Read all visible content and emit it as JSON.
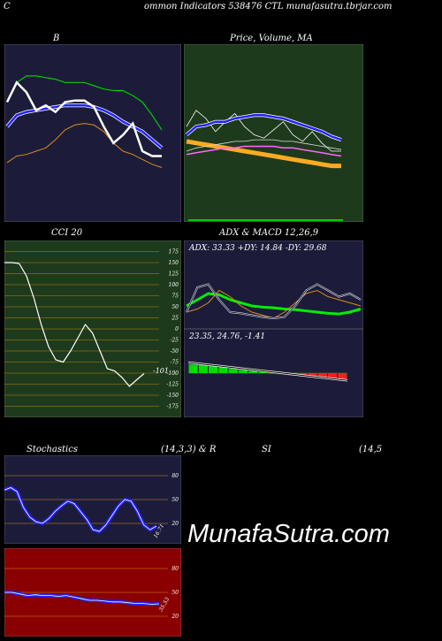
{
  "header": {
    "left_label": "C",
    "title": "ommon Indicators 538476 CTL munafasutra.tbrjar.com"
  },
  "watermark": "MunafaSutra.com",
  "colors": {
    "navy": "#1c1c3a",
    "green_bg": "#1e3a1c",
    "red_bg": "#8a0000",
    "orange": "#d98c1a",
    "blue": "#2222ff",
    "green": "#00cc00"
  },
  "chart_data": [
    {
      "id": "bollinger",
      "type": "line",
      "title": "B",
      "series": [
        {
          "values": [
            0.7,
            0.82,
            0.86,
            0.86,
            0.85,
            0.84,
            0.82,
            0.82,
            0.82,
            0.8,
            0.78,
            0.77,
            0.77,
            0.74,
            0.7,
            0.62,
            0.53
          ]
        },
        {
          "values": [
            0.55,
            0.62,
            0.64,
            0.65,
            0.66,
            0.67,
            0.68,
            0.68,
            0.68,
            0.67,
            0.65,
            0.62,
            0.58,
            0.55,
            0.52,
            0.47,
            0.42
          ]
        },
        {
          "values": [
            0.33,
            0.37,
            0.38,
            0.4,
            0.42,
            0.47,
            0.53,
            0.56,
            0.57,
            0.56,
            0.52,
            0.45,
            0.4,
            0.38,
            0.35,
            0.32,
            0.3
          ]
        },
        {
          "values": [
            0.7,
            0.82,
            0.76,
            0.65,
            0.68,
            0.64,
            0.7,
            0.71,
            0.71,
            0.67,
            0.55,
            0.45,
            0.5,
            0.57,
            0.4,
            0.37,
            0.37
          ]
        }
      ]
    },
    {
      "id": "price-ma",
      "type": "line",
      "title": "Price, Volume, MA",
      "series": [
        {
          "values": [
            0.55,
            0.65,
            0.6,
            0.52,
            0.58,
            0.63,
            0.55,
            0.5,
            0.48,
            0.53,
            0.58,
            0.5,
            0.46,
            0.52,
            0.45,
            0.4,
            0.4
          ]
        },
        {
          "values": [
            0.5,
            0.55,
            0.56,
            0.58,
            0.58,
            0.6,
            0.61,
            0.62,
            0.62,
            0.61,
            0.6,
            0.58,
            0.56,
            0.54,
            0.52,
            0.49,
            0.47
          ]
        },
        {
          "values": [
            0.46,
            0.45,
            0.44,
            0.43,
            0.42,
            0.41,
            0.4,
            0.39,
            0.38,
            0.37,
            0.36,
            0.35,
            0.34,
            0.33,
            0.32,
            0.31,
            0.31
          ]
        },
        {
          "values": [
            0.38,
            0.39,
            0.4,
            0.41,
            0.42,
            0.42,
            0.43,
            0.43,
            0.43,
            0.43,
            0.42,
            0.42,
            0.41,
            0.4,
            0.39,
            0.38,
            0.37
          ]
        },
        {
          "values": [
            0.4,
            0.42,
            0.43,
            0.44,
            0.45,
            0.46,
            0.46,
            0.47,
            0.47,
            0.47,
            0.46,
            0.46,
            0.45,
            0.44,
            0.43,
            0.42,
            0.41
          ]
        }
      ]
    },
    {
      "id": "cci",
      "type": "line",
      "title": "CCI 20",
      "yticks": [
        175,
        150,
        125,
        100,
        75,
        50,
        25,
        0,
        -25,
        -50,
        -75,
        -100,
        -125,
        -150,
        -175
      ],
      "ylim": [
        -190,
        190
      ],
      "last_value_label": "-101",
      "values": [
        150,
        150,
        148,
        120,
        70,
        10,
        -40,
        -70,
        -75,
        -50,
        -20,
        10,
        -10,
        -50,
        -90,
        -95,
        -110,
        -130,
        -115,
        -101
      ]
    },
    {
      "id": "adx",
      "type": "line",
      "title": "ADX & MACD 12,26,9",
      "label": "ADX: 33.33 +DY: 14.84 -DY: 29.68",
      "series": [
        {
          "values": [
            0.3,
            0.4,
            0.5,
            0.48,
            0.4,
            0.35,
            0.3,
            0.28,
            0.27,
            0.25,
            0.24,
            0.22,
            0.2,
            0.18,
            0.17,
            0.2,
            0.25
          ]
        },
        {
          "values": [
            0.2,
            0.25,
            0.35,
            0.55,
            0.45,
            0.3,
            0.2,
            0.15,
            0.1,
            0.2,
            0.35,
            0.5,
            0.55,
            0.45,
            0.4,
            0.35,
            0.3
          ]
        },
        {
          "values": [
            0.2,
            0.6,
            0.65,
            0.4,
            0.2,
            0.18,
            0.15,
            0.12,
            0.1,
            0.12,
            0.3,
            0.55,
            0.65,
            0.55,
            0.45,
            0.5,
            0.4
          ]
        }
      ]
    },
    {
      "id": "macd",
      "type": "bar",
      "label": "23.35, 24.76, -1.41",
      "values": [
        0.8,
        0.8,
        0.7,
        0.6,
        0.4,
        0.3,
        0.2,
        0.1,
        0.0,
        -0.1,
        -0.2,
        -0.3,
        -0.4,
        -0.5,
        -0.5,
        -0.6
      ]
    },
    {
      "id": "stochastics",
      "type": "line",
      "title": "Stochastics",
      "title_params": "(14,3,3) & R",
      "yticks": [
        80,
        50,
        20
      ],
      "ylim": [
        0,
        100
      ],
      "last_value_label": "16.71",
      "values": [
        62,
        65,
        60,
        40,
        28,
        22,
        20,
        26,
        35,
        42,
        48,
        45,
        35,
        25,
        12,
        10,
        18,
        30,
        42,
        50,
        48,
        35,
        18,
        12,
        16.71
      ]
    },
    {
      "id": "rsi",
      "type": "line",
      "title": "SI",
      "title_params": "(14,5",
      "yticks": [
        80,
        50,
        20
      ],
      "ylim": [
        0,
        100
      ],
      "last_value_label": "35.53",
      "values": [
        50,
        50,
        48,
        46,
        47,
        46,
        46,
        45,
        46,
        44,
        42,
        40,
        40,
        39,
        38,
        38,
        37,
        36,
        36,
        35,
        35.53
      ]
    }
  ]
}
